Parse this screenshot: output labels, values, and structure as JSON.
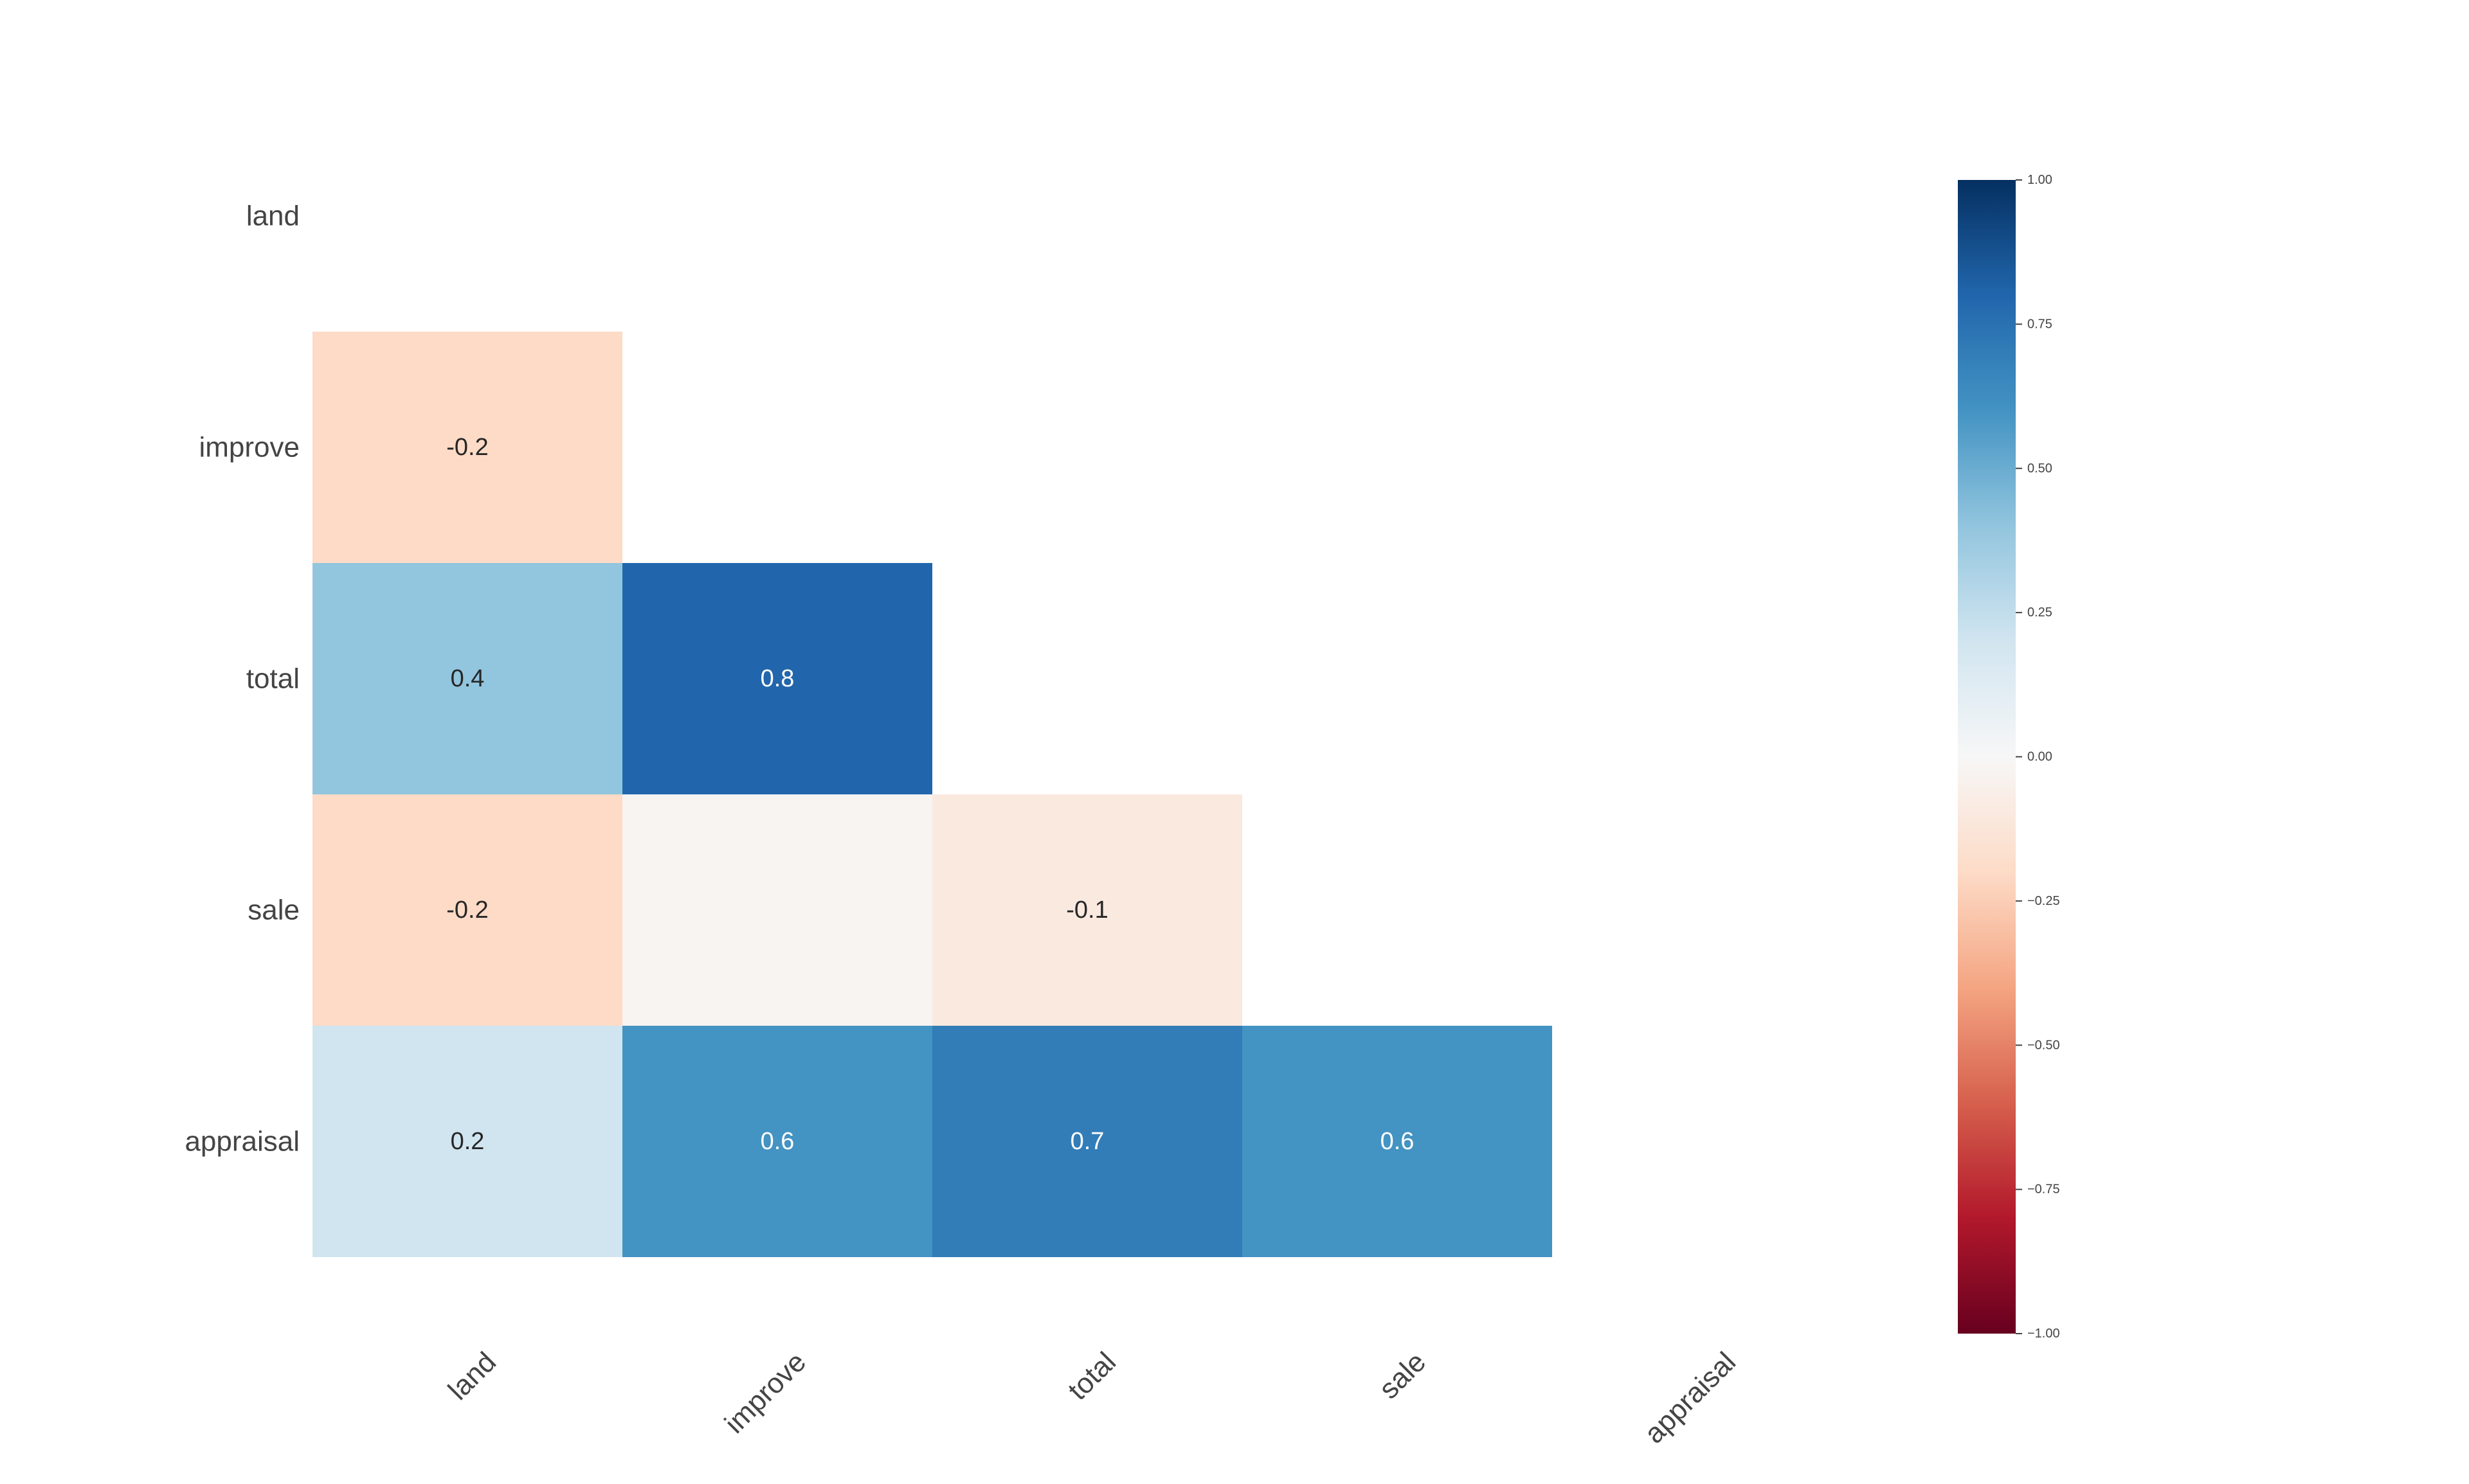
{
  "chart_data": {
    "type": "heatmap",
    "title": "",
    "xlabel": "",
    "ylabel": "",
    "mask": "upper-triangle-including-diagonal",
    "x_labels": [
      "land",
      "improve",
      "total",
      "sale",
      "appraisal"
    ],
    "y_labels": [
      "land",
      "improve",
      "total",
      "sale",
      "appraisal"
    ],
    "cells": [
      {
        "row": 1,
        "col": 0,
        "value": -0.2,
        "label": "-0.2"
      },
      {
        "row": 2,
        "col": 0,
        "value": 0.4,
        "label": "0.4"
      },
      {
        "row": 2,
        "col": 1,
        "value": 0.8,
        "label": "0.8"
      },
      {
        "row": 3,
        "col": 0,
        "value": -0.2,
        "label": "-0.2"
      },
      {
        "row": 3,
        "col": 1,
        "value": -0.02,
        "label": ""
      },
      {
        "row": 3,
        "col": 2,
        "value": -0.1,
        "label": "-0.1"
      },
      {
        "row": 4,
        "col": 0,
        "value": 0.2,
        "label": "0.2"
      },
      {
        "row": 4,
        "col": 1,
        "value": 0.6,
        "label": "0.6"
      },
      {
        "row": 4,
        "col": 2,
        "value": 0.7,
        "label": "0.7"
      },
      {
        "row": 4,
        "col": 3,
        "value": 0.6,
        "label": "0.6"
      }
    ],
    "colorbar": {
      "colormap": "RdBu",
      "vmin": -1,
      "vmax": 1,
      "ticks": [
        1.0,
        0.75,
        0.5,
        0.25,
        0.0,
        -0.25,
        -0.5,
        -0.75,
        -1.0
      ],
      "tick_labels": [
        "1.00",
        "0.75",
        "0.50",
        "0.25",
        "0.00",
        "−0.25",
        "−0.50",
        "−0.75",
        "−1.00"
      ]
    }
  }
}
